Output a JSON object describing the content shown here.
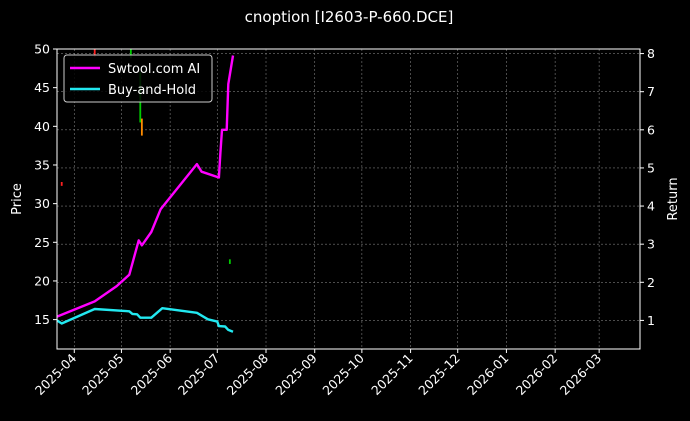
{
  "chart_data": {
    "type": "line",
    "title": "cnoption [I2603-P-660.DCE]",
    "ylabel": "Price",
    "y2label": "Return",
    "ylim": [
      11.2,
      50
    ],
    "y2lim": [
      0.25,
      8.12
    ],
    "yticks": [
      15,
      20,
      25,
      30,
      35,
      40,
      45,
      50
    ],
    "y2ticks": [
      1,
      2,
      3,
      4,
      5,
      6,
      7,
      8
    ],
    "xlim": [
      "2025-03-21",
      "2026-03-27"
    ],
    "xticks": [
      "2025-04",
      "2025-05",
      "2025-06",
      "2025-07",
      "2025-08",
      "2025-09",
      "2025-10",
      "2025-11",
      "2025-12",
      "2026-01",
      "2026-02",
      "2026-03"
    ],
    "xtick_dates": [
      "2025-04-01",
      "2025-05-01",
      "2025-06-01",
      "2025-07-01",
      "2025-08-01",
      "2025-09-01",
      "2025-10-01",
      "2025-11-01",
      "2025-12-01",
      "2026-01-01",
      "2026-02-01",
      "2026-03-01"
    ],
    "grid": true,
    "legend_position": "top-left",
    "colors": {
      "background": "#000000",
      "text": "#ffffff",
      "grid": "#7a7a7a",
      "up": "#00cc00",
      "down": "#ff2020",
      "flat": "#ff8c00"
    },
    "series": [
      {
        "name": "Swtool.com AI",
        "axis": "right",
        "color": "#ff00ff",
        "x": [
          "2025-03-21",
          "2025-04-14",
          "2025-04-28",
          "2025-05-06",
          "2025-05-12",
          "2025-05-14",
          "2025-05-20",
          "2025-05-26",
          "2025-06-18",
          "2025-06-21",
          "2025-07-02",
          "2025-07-03",
          "2025-07-04",
          "2025-07-07",
          "2025-07-08",
          "2025-07-11"
        ],
        "values": [
          1.1,
          1.5,
          1.9,
          2.2,
          3.1,
          2.97,
          3.32,
          3.92,
          5.1,
          4.9,
          4.75,
          5.4,
          6.0,
          6.0,
          7.2,
          7.95
        ]
      },
      {
        "name": "Buy-and-Hold",
        "axis": "right",
        "color": "#22e8f0",
        "x": [
          "2025-03-21",
          "2025-03-24",
          "2025-04-14",
          "2025-05-06",
          "2025-05-08",
          "2025-05-11",
          "2025-05-13",
          "2025-05-20",
          "2025-05-27",
          "2025-06-18",
          "2025-06-25",
          "2025-07-01",
          "2025-07-02",
          "2025-07-06",
          "2025-07-08",
          "2025-07-11"
        ],
        "values": [
          1.0,
          0.92,
          1.3,
          1.24,
          1.17,
          1.16,
          1.07,
          1.07,
          1.32,
          1.2,
          1.03,
          0.97,
          0.85,
          0.84,
          0.75,
          0.7
        ]
      }
    ],
    "candles": [
      {
        "date": "2025-03-24",
        "low": 32.3,
        "high": 32.8,
        "color": "down"
      },
      {
        "date": "2025-04-14",
        "low": 49.0,
        "high": 50.0,
        "color": "down"
      },
      {
        "date": "2025-05-07",
        "low": 48.8,
        "high": 50.0,
        "color": "up"
      },
      {
        "date": "2025-05-13",
        "low": 40.5,
        "high": 47.0,
        "color": "up"
      },
      {
        "date": "2025-05-14",
        "low": 38.8,
        "high": 41.0,
        "color": "flat"
      },
      {
        "date": "2025-07-09",
        "low": 22.2,
        "high": 22.8,
        "color": "up"
      }
    ]
  }
}
